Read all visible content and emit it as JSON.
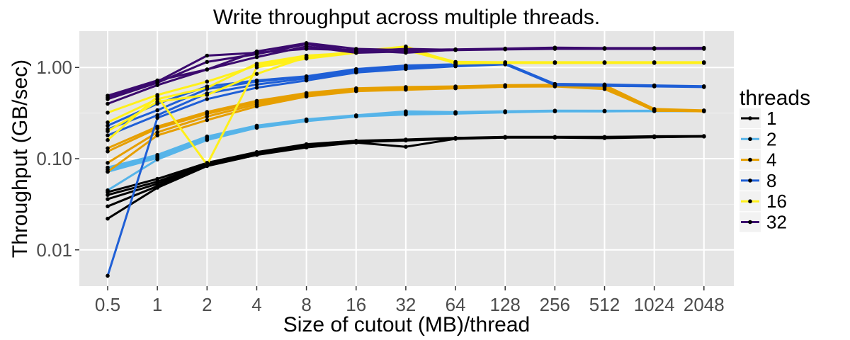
{
  "chart_data": {
    "type": "line",
    "title": "Write throughput across multiple threads.",
    "xlabel": "Size of cutout (MB)/thread",
    "ylabel": "Throughput (GB/sec)",
    "categories": [
      "0.5",
      "1",
      "2",
      "4",
      "8",
      "16",
      "32",
      "64",
      "128",
      "256",
      "512",
      "1024",
      "2048"
    ],
    "y_scale": "log10",
    "yticks": [
      0.01,
      0.1,
      1.0
    ],
    "ytick_labels": [
      "0.01",
      "0.10",
      "1.00"
    ],
    "ylim": [
      0.004,
      2.5
    ],
    "grid": true,
    "legend": {
      "title": "threads",
      "placement": "right"
    },
    "series": [
      {
        "name": "1",
        "color": "#000000",
        "runs": [
          [
            0.022,
            0.048,
            0.083,
            0.11,
            0.133,
            0.15,
            0.135,
            0.165,
            0.17,
            0.17,
            0.168,
            0.172,
            0.175
          ],
          [
            0.03,
            0.05,
            0.085,
            0.113,
            0.137,
            0.152,
            0.158,
            0.166,
            0.171,
            0.171,
            0.17,
            0.173,
            0.175
          ],
          [
            0.036,
            0.053,
            0.086,
            0.115,
            0.14,
            0.154,
            0.16,
            0.167,
            0.171,
            0.172,
            0.171,
            0.174,
            0.176
          ],
          [
            0.04,
            0.056,
            0.088,
            0.117,
            0.142,
            0.155,
            0.161,
            0.168,
            0.172,
            0.172,
            0.172,
            0.175,
            0.176
          ],
          [
            0.043,
            0.06,
            0.09,
            0.118,
            0.144,
            0.157,
            0.162,
            0.169,
            0.173,
            0.173,
            0.173,
            0.176,
            0.177
          ]
        ]
      },
      {
        "name": "2",
        "color": "#56b4e9",
        "runs": [
          [
            0.045,
            0.098,
            0.16,
            0.218,
            0.258,
            0.29,
            0.305,
            0.312,
            0.322,
            0.33,
            0.33,
            0.332,
            0.332
          ],
          [
            0.072,
            0.102,
            0.165,
            0.222,
            0.262,
            0.293,
            0.315,
            0.316,
            0.325,
            0.332,
            0.331,
            0.333,
            0.333
          ],
          [
            0.076,
            0.106,
            0.17,
            0.226,
            0.266,
            0.296,
            0.322,
            0.32,
            0.328,
            0.334,
            0.333,
            0.334,
            0.334
          ],
          [
            0.08,
            0.11,
            0.175,
            0.23,
            0.27,
            0.299,
            0.33,
            0.324,
            0.331,
            0.336,
            0.335,
            0.335,
            0.335
          ]
        ]
      },
      {
        "name": "4",
        "color": "#e69f00",
        "runs": [
          [
            0.072,
            0.18,
            0.265,
            0.375,
            0.48,
            0.55,
            0.57,
            0.59,
            0.615,
            0.62,
            0.58,
            0.34,
            0.33
          ],
          [
            0.09,
            0.195,
            0.29,
            0.395,
            0.495,
            0.565,
            0.585,
            0.6,
            0.625,
            0.63,
            0.61,
            0.335,
            0.333
          ],
          [
            0.12,
            0.215,
            0.31,
            0.415,
            0.51,
            0.578,
            0.598,
            0.612,
            0.632,
            0.64,
            0.625,
            0.345,
            0.336
          ],
          [
            0.13,
            0.225,
            0.325,
            0.43,
            0.525,
            0.59,
            0.61,
            0.62,
            0.64,
            0.645,
            0.64,
            0.35,
            0.338
          ]
        ]
      },
      {
        "name": "8",
        "color": "#1f5fd6",
        "runs": [
          [
            0.0052,
            0.28,
            0.45,
            0.6,
            0.72,
            0.88,
            0.96,
            1.03,
            1.08,
            0.65,
            0.64,
            0.625,
            0.615
          ],
          [
            0.18,
            0.3,
            0.52,
            0.65,
            0.76,
            0.91,
            0.99,
            1.05,
            1.09,
            0.64,
            0.63,
            0.62,
            0.61
          ],
          [
            0.21,
            0.34,
            0.58,
            0.7,
            0.79,
            0.94,
            1.02,
            1.07,
            1.1,
            0.655,
            0.645,
            0.63,
            0.62
          ],
          [
            0.23,
            0.4,
            0.62,
            0.72,
            0.8,
            0.96,
            1.05,
            1.08,
            1.11,
            0.66,
            0.65,
            0.635,
            0.622
          ]
        ]
      },
      {
        "name": "16",
        "color": "#fff01a",
        "runs": [
          [
            0.16,
            0.48,
            0.086,
            1.0,
            1.25,
            1.45,
            1.6,
            1.15,
            1.14,
            1.14,
            1.14,
            1.14,
            1.14
          ],
          [
            0.2,
            0.42,
            0.5,
            0.85,
            1.3,
            1.5,
            1.7,
            1.1,
            1.13,
            1.13,
            1.13,
            1.13,
            1.13
          ],
          [
            0.25,
            0.45,
            0.6,
            1.1,
            1.35,
            1.45,
            1.55,
            1.12,
            1.12,
            1.12,
            1.12,
            1.12,
            1.12
          ],
          [
            0.32,
            0.5,
            0.7,
            1.05,
            1.28,
            1.48,
            1.65,
            1.13,
            1.135,
            1.135,
            1.135,
            1.135,
            1.135
          ]
        ]
      },
      {
        "name": "32",
        "color": "#3b0a6e",
        "runs": [
          [
            0.4,
            0.64,
            0.95,
            1.3,
            1.7,
            1.45,
            1.5,
            1.55,
            1.58,
            1.6,
            1.6,
            1.6,
            1.6
          ],
          [
            0.45,
            0.68,
            1.15,
            1.4,
            1.8,
            1.5,
            1.6,
            1.56,
            1.59,
            1.62,
            1.61,
            1.61,
            1.62
          ],
          [
            0.47,
            0.7,
            1.35,
            1.45,
            1.6,
            1.55,
            1.45,
            1.57,
            1.6,
            1.64,
            1.62,
            1.62,
            1.63
          ],
          [
            0.49,
            0.72,
            0.95,
            1.5,
            1.85,
            1.6,
            1.55,
            1.58,
            1.61,
            1.65,
            1.63,
            1.63,
            1.64
          ]
        ]
      }
    ]
  }
}
